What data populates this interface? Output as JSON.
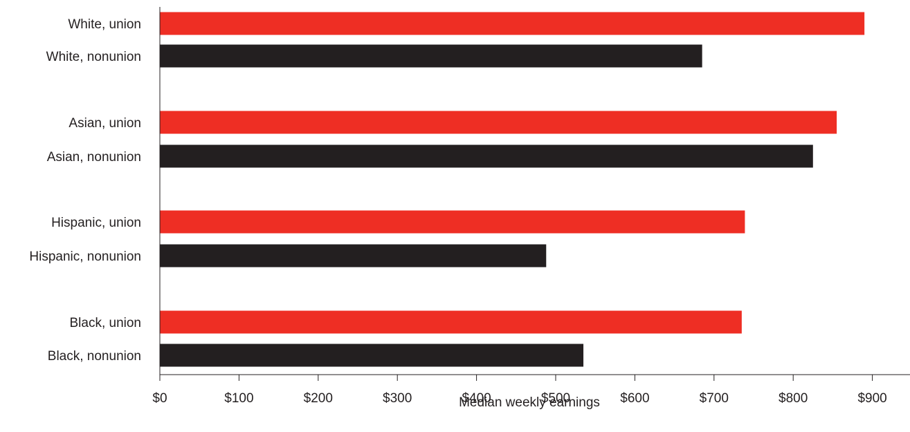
{
  "chart_data": {
    "type": "bar",
    "orientation": "horizontal",
    "categories": [
      "White, union",
      "White, nonunion",
      "Asian, union",
      "Asian, nonunion",
      "Hispanic, union",
      "Hispanic, nonunion",
      "Black, union",
      "Black, nonunion"
    ],
    "values": [
      890,
      685,
      855,
      825,
      739,
      488,
      735,
      535
    ],
    "bar_colors": [
      "#ee2e24",
      "#231f20",
      "#ee2e24",
      "#231f20",
      "#ee2e24",
      "#231f20",
      "#ee2e24",
      "#231f20"
    ],
    "xlim": [
      0,
      950
    ],
    "xticks": [
      0,
      100,
      200,
      300,
      400,
      500,
      600,
      700,
      800,
      900
    ],
    "xtick_labels": [
      "$0",
      "$100",
      "$200",
      "$300",
      "$400",
      "$500",
      "$600",
      "$700",
      "$800",
      "$900"
    ],
    "xlabel": "Median weekly earnings",
    "ylabel": "",
    "title": "",
    "grid": false,
    "legend": "none"
  }
}
